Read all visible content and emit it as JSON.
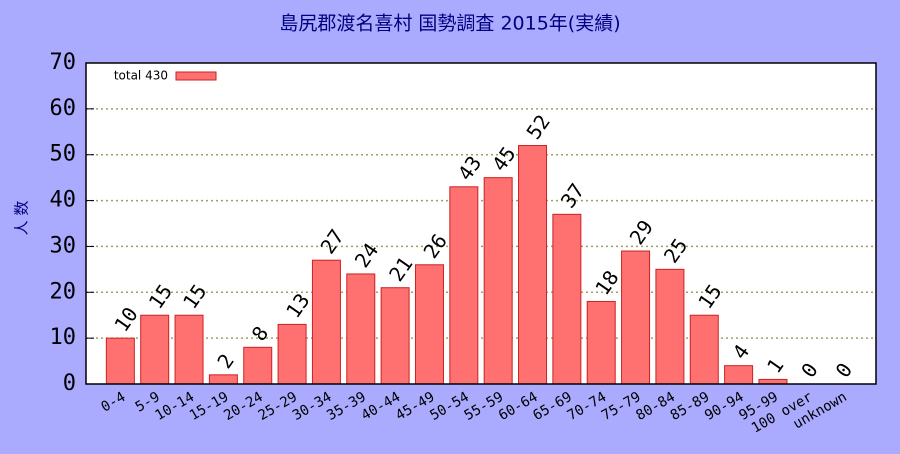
{
  "chart_data": {
    "type": "bar",
    "title": "島尻郡渡名喜村  国勢調査 2015年(実績)",
    "y_label": "人 数",
    "categories": [
      "0-4",
      "5-9",
      "10-14",
      "15-19",
      "20-24",
      "25-29",
      "30-34",
      "35-39",
      "40-44",
      "45-49",
      "50-54",
      "55-59",
      "60-64",
      "65-69",
      "70-74",
      "75-79",
      "80-84",
      "85-89",
      "90-94",
      "95-99",
      "100 over",
      "unknown"
    ],
    "series": [
      {
        "name": "total 430",
        "color": "#ff7070",
        "values": [
          10,
          15,
          15,
          2,
          8,
          13,
          27,
          24,
          21,
          26,
          43,
          45,
          52,
          37,
          18,
          29,
          25,
          15,
          4,
          1,
          0,
          0
        ]
      }
    ],
    "ylim": [
      0,
      70
    ],
    "yticks": [
      0,
      10,
      20,
      30,
      40,
      50,
      60,
      70
    ],
    "grid": true,
    "legend": "top-left"
  }
}
